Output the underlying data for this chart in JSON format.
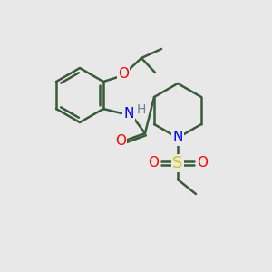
{
  "bg_color": "#e8e8e8",
  "bond_color": "#3a5a3a",
  "bond_width": 1.8,
  "atom_colors": {
    "N": "#0000ff",
    "O": "#ff0000",
    "S": "#cccc00",
    "H": "#708090",
    "C": "#3a5a3a"
  },
  "font_size": 11
}
